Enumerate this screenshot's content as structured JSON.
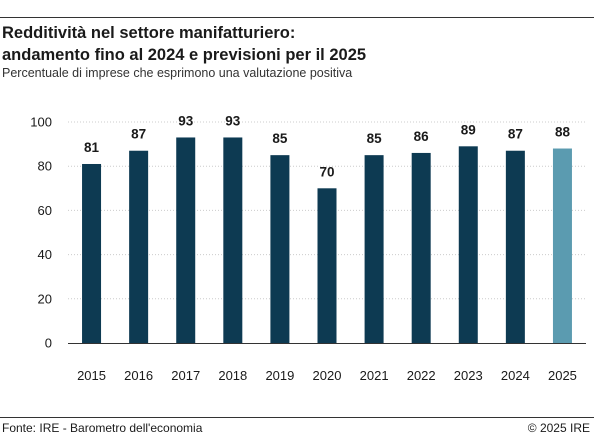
{
  "title_lines": [
    "Redditività nel settore manifatturiero:",
    "andamento fino al 2024 e previsioni per il 2025"
  ],
  "subtitle": "Percentuale di imprese che esprimono una valutazione positiva",
  "footer": {
    "source": "Fonte: IRE - Barometro dell'economia",
    "copyright": "© 2025 IRE"
  },
  "colors": {
    "actual": "#0d3a52",
    "forecast": "#5b9bb0",
    "grid": "#cccccc",
    "axis": "#333333"
  },
  "chart_data": {
    "type": "bar",
    "categories": [
      "2015",
      "2016",
      "2017",
      "2018",
      "2019",
      "2020",
      "2021",
      "2022",
      "2023",
      "2024",
      "2025"
    ],
    "values": [
      81,
      87,
      93,
      93,
      85,
      70,
      85,
      86,
      89,
      87,
      88
    ],
    "forecast_categories": [
      "2025"
    ],
    "ylim": [
      0,
      100
    ],
    "yticks": [
      0,
      20,
      40,
      60,
      80,
      100
    ],
    "grid": true,
    "title": "Redditività nel settore manifatturiero: andamento fino al 2024 e previsioni per il 2025",
    "xlabel": "",
    "ylabel": ""
  }
}
